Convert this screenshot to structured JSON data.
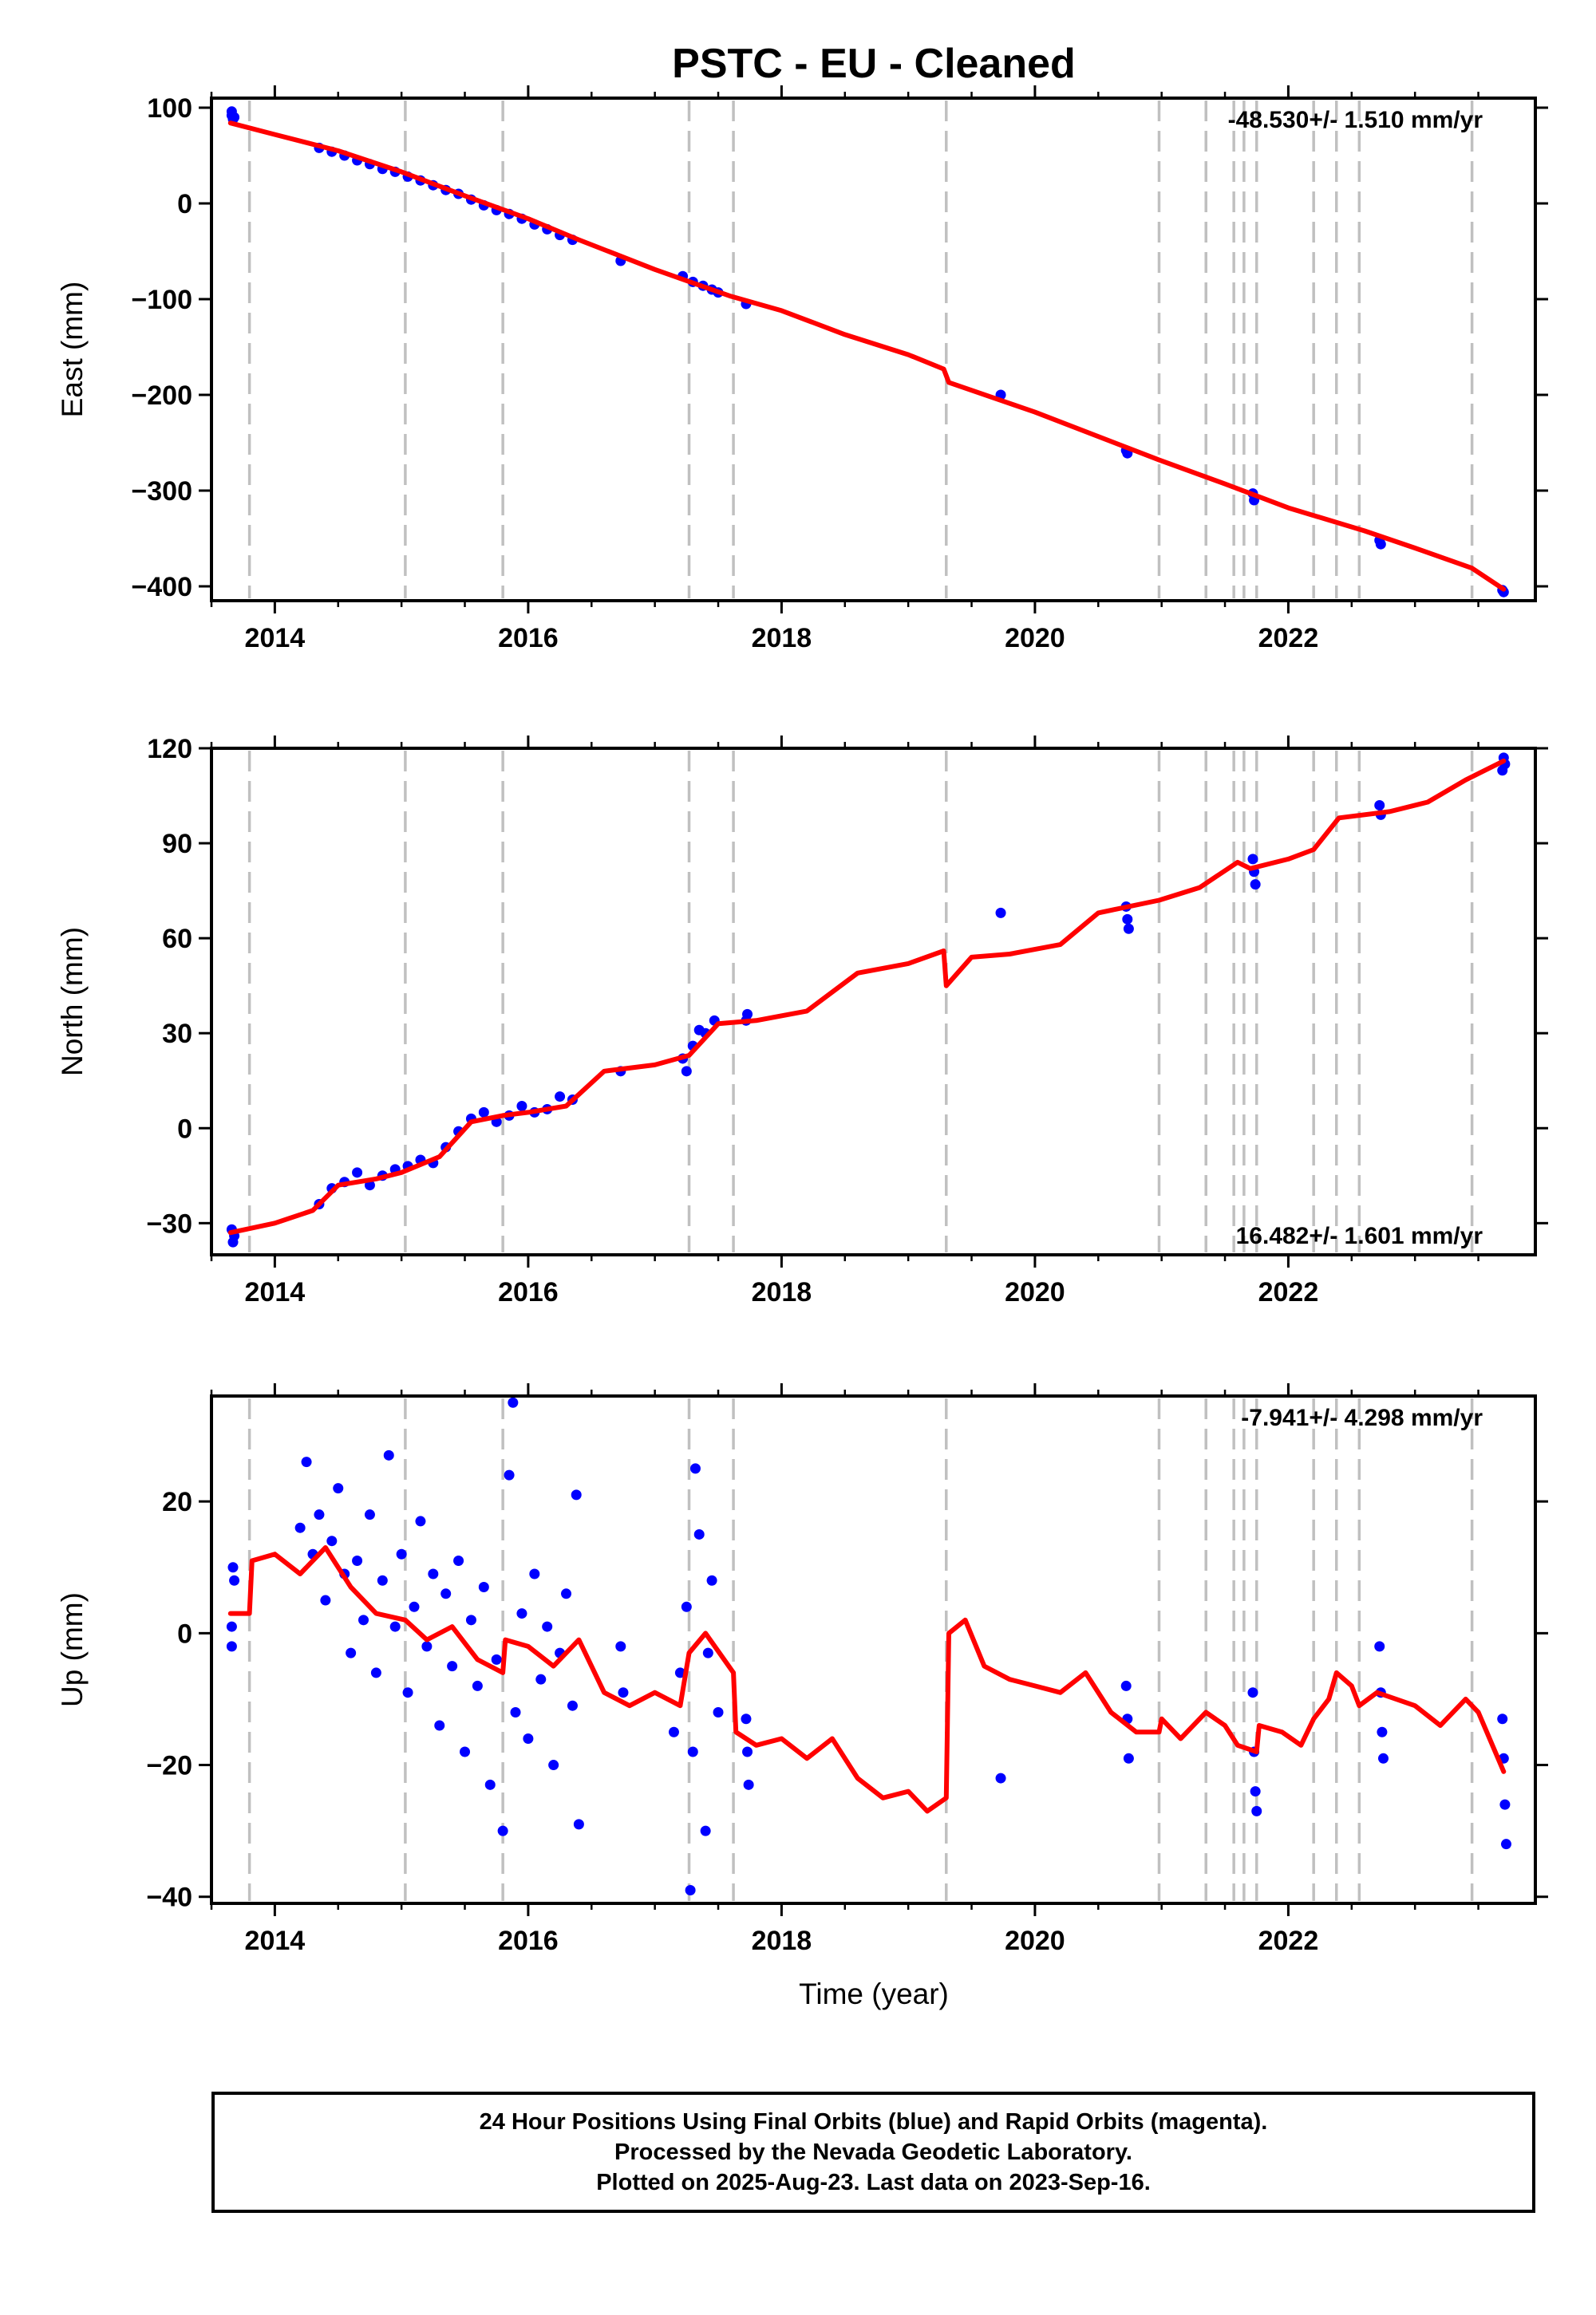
{
  "title": "PSTC  - EU - Cleaned",
  "xlabel": "Time (year)",
  "footer": {
    "line1": "24 Hour Positions Using Final Orbits (blue) and Rapid Orbits (magenta).",
    "line2": "Processed by the Nevada Geodetic Laboratory.",
    "line3": "Plotted on 2025-Aug-23. Last data on 2023-Sep-16."
  },
  "colors": {
    "data": "#0000ff",
    "model": "#ff0000",
    "events": "#c0c0c0",
    "frame": "#000000"
  },
  "chart_data": [
    {
      "type": "scatter",
      "name": "east",
      "ylabel": "East (mm)",
      "rate_text": "-48.530+/- 1.510 mm/yr",
      "xlim": [
        2013.5,
        2023.95
      ],
      "ylim": [
        -415,
        110
      ],
      "xticks": [
        2014,
        2016,
        2018,
        2020,
        2022
      ],
      "yticks": [
        100,
        0,
        -100,
        -200,
        -300,
        -400
      ],
      "events": [
        2013.8,
        2015.03,
        2015.8,
        2017.27,
        2017.62,
        2019.3,
        2020.98,
        2021.35,
        2021.57,
        2021.65,
        2021.75,
        2022.2,
        2022.38,
        2022.56,
        2023.45
      ],
      "model": [
        [
          2013.65,
          84
        ],
        [
          2014.0,
          72
        ],
        [
          2014.5,
          55
        ],
        [
          2015.0,
          33
        ],
        [
          2015.5,
          8
        ],
        [
          2016.0,
          -16
        ],
        [
          2016.4,
          -38
        ],
        [
          2017.0,
          -69
        ],
        [
          2017.6,
          -97
        ],
        [
          2018.0,
          -112
        ],
        [
          2018.5,
          -137
        ],
        [
          2019.0,
          -158
        ],
        [
          2019.28,
          -173
        ],
        [
          2019.32,
          -187
        ],
        [
          2020.0,
          -218
        ],
        [
          2020.98,
          -268
        ],
        [
          2021.5,
          -293
        ],
        [
          2022.0,
          -318
        ],
        [
          2022.6,
          -342
        ],
        [
          2023.0,
          -360
        ],
        [
          2023.45,
          -381
        ],
        [
          2023.7,
          -403
        ]
      ],
      "points": [
        [
          2013.66,
          92
        ],
        [
          2013.66,
          96
        ],
        [
          2013.67,
          88
        ],
        [
          2013.68,
          90
        ],
        [
          2014.35,
          58
        ],
        [
          2014.45,
          54
        ],
        [
          2014.55,
          50
        ],
        [
          2014.65,
          45
        ],
        [
          2014.75,
          41
        ],
        [
          2014.85,
          36
        ],
        [
          2014.95,
          33
        ],
        [
          2015.05,
          28
        ],
        [
          2015.15,
          24
        ],
        [
          2015.25,
          19
        ],
        [
          2015.35,
          14
        ],
        [
          2015.45,
          10
        ],
        [
          2015.55,
          4
        ],
        [
          2015.65,
          -2
        ],
        [
          2015.75,
          -7
        ],
        [
          2015.85,
          -11
        ],
        [
          2015.95,
          -16
        ],
        [
          2016.05,
          -22
        ],
        [
          2016.15,
          -27
        ],
        [
          2016.25,
          -33
        ],
        [
          2016.35,
          -38
        ],
        [
          2016.73,
          -60
        ],
        [
          2017.22,
          -76
        ],
        [
          2017.3,
          -82
        ],
        [
          2017.38,
          -86
        ],
        [
          2017.45,
          -90
        ],
        [
          2017.5,
          -93
        ],
        [
          2017.72,
          -105
        ],
        [
          2019.73,
          -200
        ],
        [
          2020.72,
          -258
        ],
        [
          2020.73,
          -261
        ],
        [
          2021.72,
          -303
        ],
        [
          2021.73,
          -310
        ],
        [
          2022.72,
          -352
        ],
        [
          2022.73,
          -356
        ],
        [
          2023.69,
          -404
        ],
        [
          2023.7,
          -406
        ]
      ]
    },
    {
      "type": "scatter",
      "name": "north",
      "ylabel": "North (mm)",
      "rate_text": "16.482+/- 1.601 mm/yr",
      "xlim": [
        2013.5,
        2023.95
      ],
      "ylim": [
        -40,
        120
      ],
      "xticks": [
        2014,
        2016,
        2018,
        2020,
        2022
      ],
      "yticks": [
        120,
        90,
        60,
        30,
        0,
        -30
      ],
      "events": [
        2013.8,
        2015.03,
        2015.8,
        2017.27,
        2017.62,
        2019.3,
        2020.98,
        2021.35,
        2021.57,
        2021.65,
        2021.75,
        2022.2,
        2022.38,
        2022.56,
        2023.45
      ],
      "model": [
        [
          2013.65,
          -33
        ],
        [
          2014.0,
          -30
        ],
        [
          2014.3,
          -26
        ],
        [
          2014.5,
          -18
        ],
        [
          2014.8,
          -16
        ],
        [
          2015.0,
          -14
        ],
        [
          2015.3,
          -9
        ],
        [
          2015.55,
          2
        ],
        [
          2015.8,
          4
        ],
        [
          2016.0,
          5
        ],
        [
          2016.3,
          7
        ],
        [
          2016.6,
          18
        ],
        [
          2017.0,
          20
        ],
        [
          2017.27,
          23
        ],
        [
          2017.5,
          33
        ],
        [
          2017.8,
          34
        ],
        [
          2018.2,
          37
        ],
        [
          2018.6,
          49
        ],
        [
          2019.0,
          52
        ],
        [
          2019.28,
          56
        ],
        [
          2019.3,
          45
        ],
        [
          2019.5,
          54
        ],
        [
          2019.8,
          55
        ],
        [
          2020.2,
          58
        ],
        [
          2020.5,
          68
        ],
        [
          2020.98,
          72
        ],
        [
          2021.3,
          76
        ],
        [
          2021.6,
          84
        ],
        [
          2021.7,
          82
        ],
        [
          2022.0,
          85
        ],
        [
          2022.2,
          88
        ],
        [
          2022.4,
          98
        ],
        [
          2022.8,
          100
        ],
        [
          2023.1,
          103
        ],
        [
          2023.4,
          110
        ],
        [
          2023.7,
          116
        ]
      ],
      "points": [
        [
          2013.66,
          -32
        ],
        [
          2013.67,
          -36
        ],
        [
          2013.68,
          -34
        ],
        [
          2014.35,
          -24
        ],
        [
          2014.45,
          -19
        ],
        [
          2014.55,
          -17
        ],
        [
          2014.65,
          -14
        ],
        [
          2014.75,
          -18
        ],
        [
          2014.85,
          -15
        ],
        [
          2014.95,
          -13
        ],
        [
          2015.05,
          -12
        ],
        [
          2015.15,
          -10
        ],
        [
          2015.25,
          -11
        ],
        [
          2015.35,
          -6
        ],
        [
          2015.45,
          -1
        ],
        [
          2015.55,
          3
        ],
        [
          2015.65,
          5
        ],
        [
          2015.75,
          2
        ],
        [
          2015.85,
          4
        ],
        [
          2015.95,
          7
        ],
        [
          2016.05,
          5
        ],
        [
          2016.15,
          6
        ],
        [
          2016.25,
          10
        ],
        [
          2016.35,
          9
        ],
        [
          2016.73,
          18
        ],
        [
          2017.22,
          22
        ],
        [
          2017.25,
          18
        ],
        [
          2017.3,
          26
        ],
        [
          2017.35,
          31
        ],
        [
          2017.4,
          30
        ],
        [
          2017.47,
          34
        ],
        [
          2017.72,
          34
        ],
        [
          2017.73,
          36
        ],
        [
          2019.73,
          68
        ],
        [
          2020.72,
          70
        ],
        [
          2020.73,
          66
        ],
        [
          2020.74,
          63
        ],
        [
          2021.72,
          85
        ],
        [
          2021.73,
          81
        ],
        [
          2021.74,
          77
        ],
        [
          2022.72,
          102
        ],
        [
          2022.73,
          99
        ],
        [
          2023.69,
          113
        ],
        [
          2023.7,
          117
        ],
        [
          2023.71,
          115
        ]
      ]
    },
    {
      "type": "scatter",
      "name": "up",
      "ylabel": "Up (mm)",
      "rate_text": "-7.941+/- 4.298 mm/yr",
      "xlim": [
        2013.5,
        2023.95
      ],
      "ylim": [
        -41,
        36
      ],
      "xticks": [
        2014,
        2016,
        2018,
        2020,
        2022
      ],
      "yticks": [
        20,
        0,
        -20,
        -40
      ],
      "events": [
        2013.8,
        2015.03,
        2015.8,
        2017.27,
        2017.62,
        2019.3,
        2020.98,
        2021.35,
        2021.57,
        2021.65,
        2021.75,
        2022.2,
        2022.38,
        2022.56,
        2023.45
      ],
      "model": [
        [
          2013.65,
          3
        ],
        [
          2013.8,
          3
        ],
        [
          2013.82,
          11
        ],
        [
          2014.0,
          12
        ],
        [
          2014.2,
          9
        ],
        [
          2014.4,
          13
        ],
        [
          2014.6,
          7
        ],
        [
          2014.8,
          3
        ],
        [
          2015.03,
          2
        ],
        [
          2015.2,
          -1
        ],
        [
          2015.4,
          1
        ],
        [
          2015.6,
          -4
        ],
        [
          2015.8,
          -6
        ],
        [
          2015.82,
          -1
        ],
        [
          2016.0,
          -2
        ],
        [
          2016.2,
          -5
        ],
        [
          2016.4,
          -1
        ],
        [
          2016.6,
          -9
        ],
        [
          2016.8,
          -11
        ],
        [
          2017.0,
          -9
        ],
        [
          2017.2,
          -11
        ],
        [
          2017.27,
          -3
        ],
        [
          2017.4,
          0
        ],
        [
          2017.62,
          -6
        ],
        [
          2017.64,
          -15
        ],
        [
          2017.8,
          -17
        ],
        [
          2018.0,
          -16
        ],
        [
          2018.2,
          -19
        ],
        [
          2018.4,
          -16
        ],
        [
          2018.6,
          -22
        ],
        [
          2018.8,
          -25
        ],
        [
          2019.0,
          -24
        ],
        [
          2019.15,
          -27
        ],
        [
          2019.3,
          -25
        ],
        [
          2019.32,
          0
        ],
        [
          2019.45,
          2
        ],
        [
          2019.6,
          -5
        ],
        [
          2019.8,
          -7
        ],
        [
          2020.0,
          -8
        ],
        [
          2020.2,
          -9
        ],
        [
          2020.4,
          -6
        ],
        [
          2020.6,
          -12
        ],
        [
          2020.8,
          -15
        ],
        [
          2020.98,
          -15
        ],
        [
          2021.0,
          -13
        ],
        [
          2021.15,
          -16
        ],
        [
          2021.35,
          -12
        ],
        [
          2021.5,
          -14
        ],
        [
          2021.6,
          -17
        ],
        [
          2021.75,
          -18
        ],
        [
          2021.77,
          -14
        ],
        [
          2021.95,
          -15
        ],
        [
          2022.1,
          -17
        ],
        [
          2022.2,
          -13
        ],
        [
          2022.32,
          -10
        ],
        [
          2022.38,
          -6
        ],
        [
          2022.5,
          -8
        ],
        [
          2022.56,
          -11
        ],
        [
          2022.7,
          -9
        ],
        [
          2022.85,
          -10
        ],
        [
          2023.0,
          -11
        ],
        [
          2023.2,
          -14
        ],
        [
          2023.4,
          -10
        ],
        [
          2023.5,
          -12
        ],
        [
          2023.7,
          -21
        ]
      ],
      "points": [
        [
          2013.66,
          -2
        ],
        [
          2013.66,
          1
        ],
        [
          2013.67,
          10
        ],
        [
          2013.68,
          8
        ],
        [
          2014.2,
          16
        ],
        [
          2014.25,
          26
        ],
        [
          2014.3,
          12
        ],
        [
          2014.35,
          18
        ],
        [
          2014.4,
          5
        ],
        [
          2014.45,
          14
        ],
        [
          2014.5,
          22
        ],
        [
          2014.55,
          9
        ],
        [
          2014.6,
          -3
        ],
        [
          2014.65,
          11
        ],
        [
          2014.7,
          2
        ],
        [
          2014.75,
          18
        ],
        [
          2014.8,
          -6
        ],
        [
          2014.85,
          8
        ],
        [
          2014.9,
          27
        ],
        [
          2014.95,
          1
        ],
        [
          2015.0,
          12
        ],
        [
          2015.05,
          -9
        ],
        [
          2015.1,
          4
        ],
        [
          2015.15,
          17
        ],
        [
          2015.2,
          -2
        ],
        [
          2015.25,
          9
        ],
        [
          2015.3,
          -14
        ],
        [
          2015.35,
          6
        ],
        [
          2015.4,
          -5
        ],
        [
          2015.45,
          11
        ],
        [
          2015.5,
          -18
        ],
        [
          2015.55,
          2
        ],
        [
          2015.6,
          -8
        ],
        [
          2015.65,
          7
        ],
        [
          2015.7,
          -23
        ],
        [
          2015.75,
          -4
        ],
        [
          2015.8,
          -30
        ],
        [
          2015.85,
          24
        ],
        [
          2015.88,
          35
        ],
        [
          2015.9,
          -12
        ],
        [
          2015.95,
          3
        ],
        [
          2016.0,
          -16
        ],
        [
          2016.05,
          9
        ],
        [
          2016.1,
          -7
        ],
        [
          2016.15,
          1
        ],
        [
          2016.2,
          -20
        ],
        [
          2016.25,
          -3
        ],
        [
          2016.3,
          6
        ],
        [
          2016.35,
          -11
        ],
        [
          2016.38,
          21
        ],
        [
          2016.4,
          -29
        ],
        [
          2016.73,
          -2
        ],
        [
          2016.75,
          -9
        ],
        [
          2017.15,
          -15
        ],
        [
          2017.2,
          -6
        ],
        [
          2017.25,
          4
        ],
        [
          2017.28,
          -39
        ],
        [
          2017.3,
          -18
        ],
        [
          2017.32,
          25
        ],
        [
          2017.35,
          15
        ],
        [
          2017.4,
          -30
        ],
        [
          2017.42,
          -3
        ],
        [
          2017.45,
          8
        ],
        [
          2017.5,
          -12
        ],
        [
          2017.72,
          -13
        ],
        [
          2017.73,
          -18
        ],
        [
          2017.74,
          -23
        ],
        [
          2019.73,
          -22
        ],
        [
          2020.72,
          -8
        ],
        [
          2020.73,
          -13
        ],
        [
          2020.74,
          -19
        ],
        [
          2021.72,
          -9
        ],
        [
          2021.73,
          -18
        ],
        [
          2021.74,
          -24
        ],
        [
          2021.75,
          -27
        ],
        [
          2022.72,
          -2
        ],
        [
          2022.73,
          -9
        ],
        [
          2022.74,
          -15
        ],
        [
          2022.75,
          -19
        ],
        [
          2023.69,
          -13
        ],
        [
          2023.7,
          -19
        ],
        [
          2023.71,
          -26
        ],
        [
          2023.72,
          -32
        ]
      ]
    }
  ]
}
